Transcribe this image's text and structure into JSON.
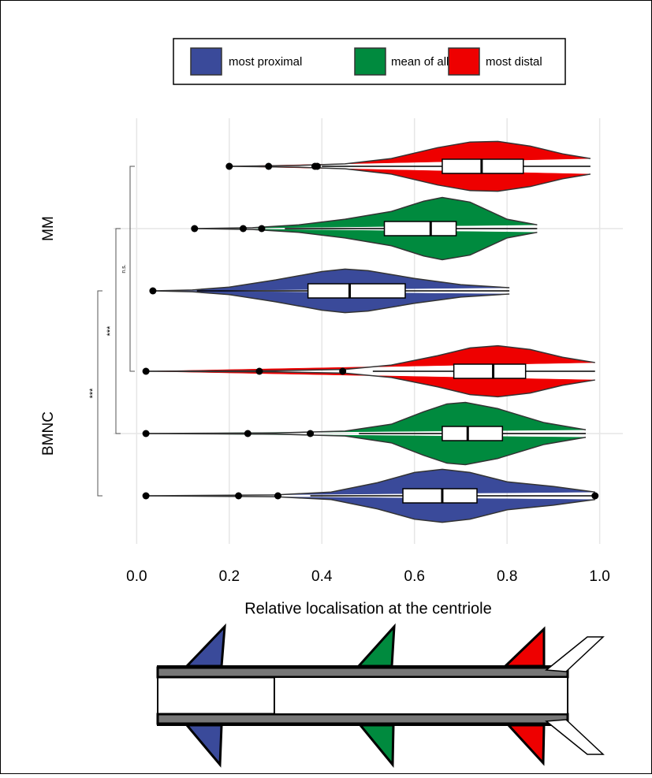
{
  "chart_data": {
    "type": "violin",
    "xlabel": "Relative localisation at the centriole",
    "categories": [
      "MM",
      "BMNC"
    ],
    "xlim": [
      -0.05,
      1.05
    ],
    "xticks": [
      {
        "value": 0,
        "label": "0.0"
      },
      0.2,
      0.4,
      0.6,
      0.8,
      {
        "value": 1,
        "label": "1.0"
      }
    ],
    "grid": true,
    "legend": "top",
    "series": [
      {
        "name": "most proximal",
        "color": "#3a4a9a",
        "data": [
          {
            "min": 0.13,
            "q1": 0.37,
            "median": 0.46,
            "q3": 0.58,
            "max": 0.805,
            "outliers": [
              0.035
            ],
            "violin_x": [
              0.035,
              0.12,
              0.2,
              0.3,
              0.4,
              0.45,
              0.5,
              0.6,
              0.7,
              0.805
            ],
            "violin_w": [
              0,
              0.03,
              0.12,
              0.35,
              0.62,
              0.7,
              0.65,
              0.4,
              0.2,
              0.1
            ]
          },
          {
            "min": 0.375,
            "q1": 0.575,
            "median": 0.66,
            "q3": 0.735,
            "max": 0.99,
            "outliers": [
              0.02,
              0.22,
              0.305,
              0.99
            ],
            "violin_x": [
              0.02,
              0.3,
              0.42,
              0.52,
              0.6,
              0.66,
              0.72,
              0.8,
              0.9,
              0.99
            ],
            "violin_w": [
              0,
              0.03,
              0.12,
              0.42,
              0.75,
              0.85,
              0.75,
              0.45,
              0.3,
              0.12
            ]
          }
        ]
      },
      {
        "name": "mean of all",
        "color": "#008a3e",
        "data": [
          {
            "min": 0.32,
            "q1": 0.535,
            "median": 0.635,
            "q3": 0.69,
            "max": 0.865,
            "outliers": [
              0.125,
              0.23,
              0.27
            ],
            "violin_x": [
              0.125,
              0.25,
              0.35,
              0.45,
              0.55,
              0.62,
              0.66,
              0.72,
              0.8,
              0.865
            ],
            "violin_w": [
              0,
              0.03,
              0.12,
              0.3,
              0.55,
              0.88,
              1.0,
              0.85,
              0.3,
              0.12
            ]
          },
          {
            "min": 0.48,
            "q1": 0.66,
            "median": 0.715,
            "q3": 0.79,
            "max": 0.97,
            "outliers": [
              0.02,
              0.24,
              0.375
            ],
            "violin_x": [
              0.02,
              0.3,
              0.45,
              0.55,
              0.62,
              0.67,
              0.71,
              0.78,
              0.88,
              0.97
            ],
            "violin_w": [
              0,
              0.02,
              0.08,
              0.3,
              0.7,
              0.95,
              1.0,
              0.8,
              0.35,
              0.12
            ]
          }
        ]
      },
      {
        "name": "most distal",
        "color": "#ee0000",
        "data": [
          {
            "min": 0.4,
            "q1": 0.66,
            "median": 0.745,
            "q3": 0.835,
            "max": 0.98,
            "outliers": [
              0.2,
              0.285,
              0.385,
              0.39
            ],
            "violin_x": [
              0.2,
              0.35,
              0.45,
              0.55,
              0.65,
              0.72,
              0.78,
              0.85,
              0.92,
              0.98
            ],
            "violin_w": [
              0,
              0.03,
              0.08,
              0.25,
              0.6,
              0.78,
              0.8,
              0.65,
              0.4,
              0.25
            ]
          },
          {
            "min": 0.51,
            "q1": 0.685,
            "median": 0.77,
            "q3": 0.84,
            "max": 0.99,
            "outliers": [
              0.02,
              0.265,
              0.445
            ],
            "violin_x": [
              0.02,
              0.3,
              0.45,
              0.55,
              0.65,
              0.72,
              0.78,
              0.85,
              0.92,
              0.99
            ],
            "violin_w": [
              0,
              0.02,
              0.06,
              0.2,
              0.5,
              0.75,
              0.82,
              0.7,
              0.45,
              0.28
            ]
          }
        ]
      }
    ],
    "annotations": [
      {
        "label": "***"
      },
      {
        "label": "***"
      },
      {
        "label": "n.s."
      }
    ]
  }
}
